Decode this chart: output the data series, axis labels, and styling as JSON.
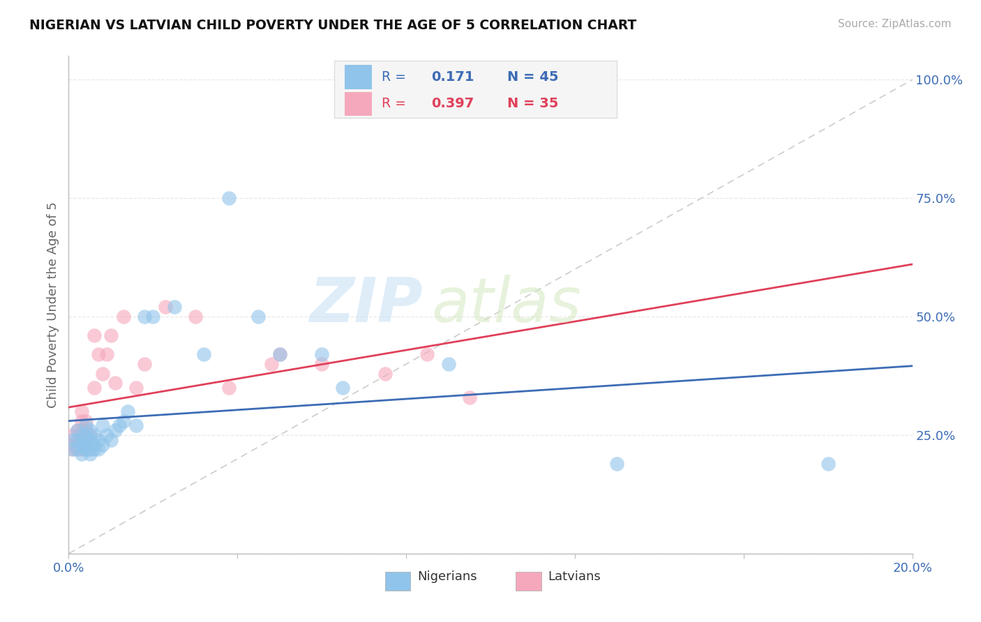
{
  "title": "NIGERIAN VS LATVIAN CHILD POVERTY UNDER THE AGE OF 5 CORRELATION CHART",
  "source_text": "Source: ZipAtlas.com",
  "ylabel": "Child Poverty Under the Age of 5",
  "xlim": [
    0.0,
    0.2
  ],
  "ylim": [
    0.0,
    1.05
  ],
  "xtick_vals": [
    0.0,
    0.04,
    0.08,
    0.12,
    0.16,
    0.2
  ],
  "xtick_labels": [
    "0.0%",
    "",
    "",
    "",
    "",
    "20.0%"
  ],
  "ytick_vals": [
    0.0,
    0.25,
    0.5,
    0.75,
    1.0
  ],
  "ytick_labels": [
    "",
    "25.0%",
    "50.0%",
    "75.0%",
    "100.0%"
  ],
  "nigerians_x": [
    0.001,
    0.001,
    0.002,
    0.002,
    0.002,
    0.003,
    0.003,
    0.003,
    0.003,
    0.004,
    0.004,
    0.004,
    0.004,
    0.004,
    0.005,
    0.005,
    0.005,
    0.005,
    0.005,
    0.006,
    0.006,
    0.006,
    0.007,
    0.007,
    0.008,
    0.008,
    0.009,
    0.01,
    0.011,
    0.012,
    0.013,
    0.014,
    0.016,
    0.018,
    0.02,
    0.025,
    0.032,
    0.038,
    0.045,
    0.05,
    0.06,
    0.065,
    0.09,
    0.13,
    0.18
  ],
  "nigerians_y": [
    0.22,
    0.24,
    0.22,
    0.24,
    0.26,
    0.21,
    0.23,
    0.23,
    0.25,
    0.22,
    0.22,
    0.24,
    0.25,
    0.27,
    0.21,
    0.22,
    0.23,
    0.24,
    0.26,
    0.22,
    0.23,
    0.25,
    0.22,
    0.24,
    0.23,
    0.27,
    0.25,
    0.24,
    0.26,
    0.27,
    0.28,
    0.3,
    0.27,
    0.5,
    0.5,
    0.52,
    0.42,
    0.75,
    0.5,
    0.42,
    0.42,
    0.35,
    0.4,
    0.19,
    0.19
  ],
  "latvians_x": [
    0.001,
    0.001,
    0.001,
    0.002,
    0.002,
    0.002,
    0.003,
    0.003,
    0.003,
    0.003,
    0.003,
    0.004,
    0.004,
    0.004,
    0.005,
    0.005,
    0.006,
    0.006,
    0.007,
    0.008,
    0.009,
    0.01,
    0.011,
    0.013,
    0.016,
    0.018,
    0.023,
    0.03,
    0.038,
    0.048,
    0.05,
    0.06,
    0.075,
    0.085,
    0.095
  ],
  "latvians_y": [
    0.22,
    0.23,
    0.25,
    0.22,
    0.24,
    0.26,
    0.22,
    0.24,
    0.26,
    0.28,
    0.3,
    0.24,
    0.26,
    0.28,
    0.22,
    0.25,
    0.35,
    0.46,
    0.42,
    0.38,
    0.42,
    0.46,
    0.36,
    0.5,
    0.35,
    0.4,
    0.52,
    0.5,
    0.35,
    0.4,
    0.42,
    0.4,
    0.38,
    0.42,
    0.33
  ],
  "nigerian_color": "#90c4ea",
  "latvian_color": "#f5a8bc",
  "nigerian_line_color": "#3d6cb5",
  "latvian_line_color": "#e0405a",
  "diagonal_color": "#cccccc",
  "r_nigerian": 0.171,
  "n_nigerian": 45,
  "r_latvian": 0.397,
  "n_latvian": 35,
  "watermark_zip_color": "#c5dff5",
  "watermark_atlas_color": "#d5e8c0",
  "background_color": "#ffffff",
  "grid_color": "#e8e8e8",
  "legend_box_color": "#f5f5f5",
  "legend_edge_color": "#dddddd"
}
